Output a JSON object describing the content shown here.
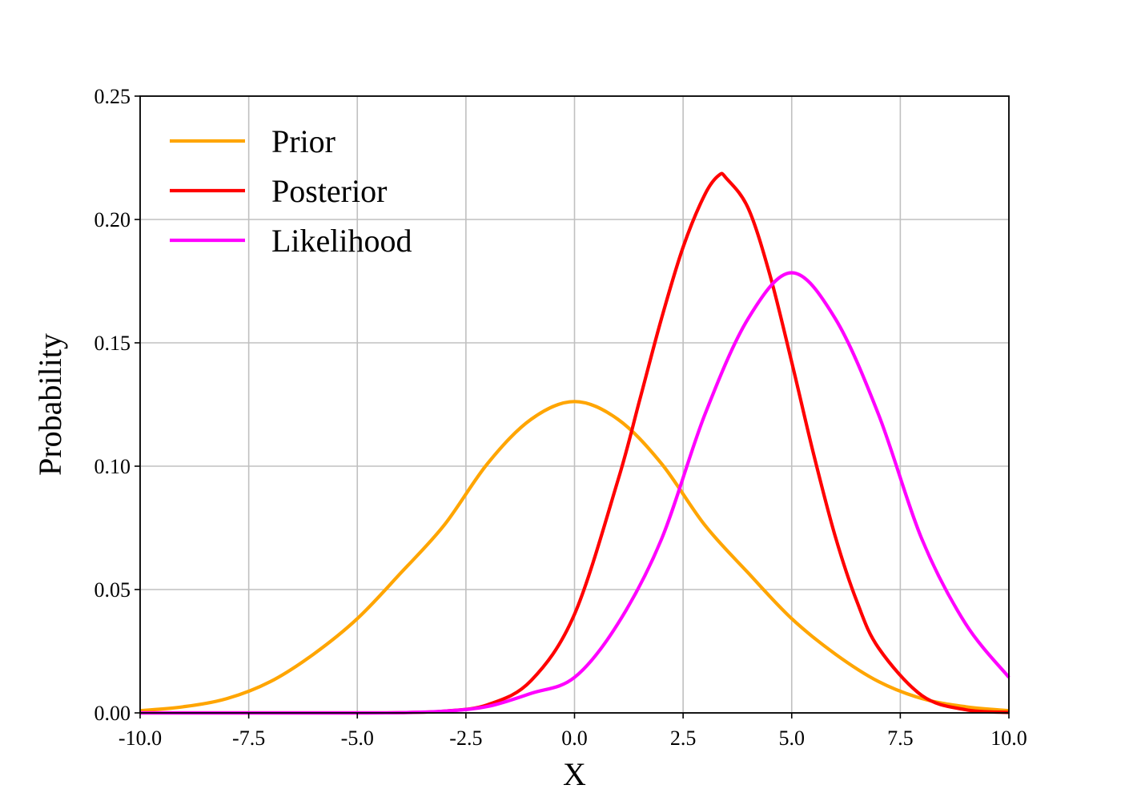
{
  "chart_data": {
    "type": "line",
    "title": "",
    "xlabel": "X",
    "ylabel": "Probability",
    "xlim": [
      -10.0,
      10.0
    ],
    "ylim": [
      0.0,
      0.25
    ],
    "x_ticks": [
      -10.0,
      -7.5,
      -5.0,
      -2.5,
      0.0,
      2.5,
      5.0,
      7.5,
      10.0
    ],
    "x_tick_labels": [
      "-10.0",
      "-7.5",
      "-5.0",
      "-2.5",
      "0.0",
      "2.5",
      "5.0",
      "7.5",
      "10.0"
    ],
    "y_ticks": [
      0.0,
      0.05,
      0.1,
      0.15,
      0.2,
      0.25
    ],
    "y_tick_labels": [
      "0.00",
      "0.05",
      "0.10",
      "0.15",
      "0.20",
      "0.25"
    ],
    "grid": true,
    "legend_position": "top-left",
    "series": [
      {
        "name": "Prior",
        "color": "#FFA500",
        "x": [
          -10,
          -9,
          -8,
          -7,
          -6,
          -5,
          -4,
          -3,
          -2,
          -1,
          0,
          1,
          2,
          3,
          4,
          5,
          6,
          7,
          8,
          9,
          10
        ],
        "y": [
          0.0009,
          0.0025,
          0.0058,
          0.0127,
          0.0239,
          0.0382,
          0.0567,
          0.0761,
          0.1011,
          0.119,
          0.1262,
          0.119,
          0.1011,
          0.0761,
          0.0567,
          0.0382,
          0.0239,
          0.0127,
          0.0058,
          0.0025,
          0.0009
        ]
      },
      {
        "name": "Posterior",
        "color": "#FF0000",
        "x": [
          -10,
          -9,
          -8,
          -7,
          -6,
          -5,
          -4,
          -3,
          -2,
          -1,
          0,
          1,
          1.5,
          2,
          2.5,
          3,
          3.33,
          3.5,
          4,
          4.5,
          5,
          5.5,
          6,
          6.5,
          7,
          8,
          9,
          10
        ],
        "y": [
          0.0,
          0.0,
          0.0,
          0.0,
          0.0,
          0.0,
          0.0001,
          0.0007,
          0.0033,
          0.0131,
          0.04,
          0.0943,
          0.1268,
          0.1597,
          0.1888,
          0.2101,
          0.218,
          0.2166,
          0.2045,
          0.1774,
          0.1422,
          0.1052,
          0.0717,
          0.0452,
          0.0263,
          0.007,
          0.0013,
          0.0002
        ]
      },
      {
        "name": "Likelihood",
        "color": "#FF00FF",
        "x": [
          -10,
          -9,
          -8,
          -7,
          -6,
          -5,
          -4,
          -3,
          -2,
          -1,
          0,
          1,
          2,
          3,
          4,
          5,
          6,
          7,
          8,
          9,
          10
        ],
        "y": [
          0.0,
          0.0,
          0.0,
          0.0,
          0.0,
          0.0,
          0.0001,
          0.0007,
          0.0026,
          0.0079,
          0.0144,
          0.0362,
          0.0703,
          0.1209,
          0.1599,
          0.1784,
          0.1599,
          0.1209,
          0.0703,
          0.0362,
          0.0144
        ]
      }
    ]
  }
}
